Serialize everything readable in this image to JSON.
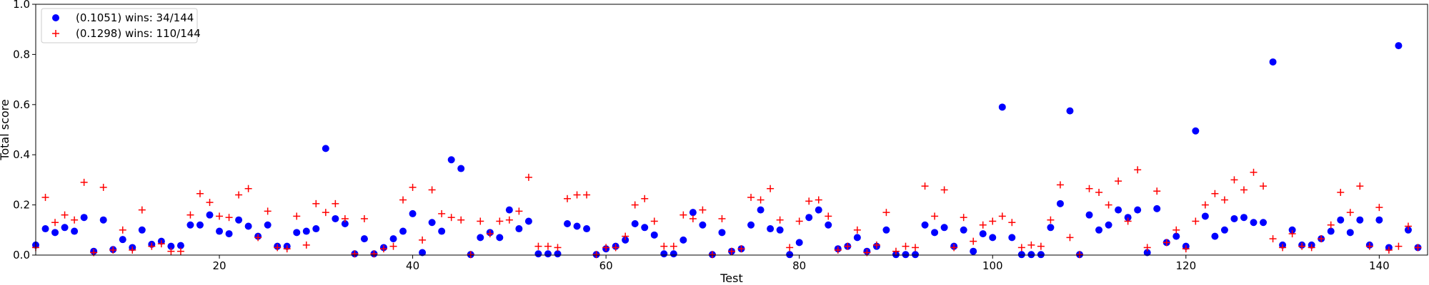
{
  "chart_data": {
    "type": "scatter",
    "xlabel": "Test",
    "ylabel": "Total score",
    "xlim": [
      1,
      145
    ],
    "ylim": [
      0.0,
      1.0
    ],
    "xticks": [
      20,
      40,
      60,
      80,
      100,
      120,
      140
    ],
    "yticks": [
      0.0,
      0.2,
      0.4,
      0.6,
      0.8,
      1.0
    ],
    "grid": false,
    "legend_position": "top-left",
    "series": [
      {
        "name": "(0.1051) wins: 34/144",
        "marker": "circle",
        "color": "#0000ff",
        "x": [
          1,
          2,
          3,
          4,
          5,
          6,
          7,
          8,
          9,
          10,
          11,
          12,
          13,
          14,
          15,
          16,
          17,
          18,
          19,
          20,
          21,
          22,
          23,
          24,
          25,
          26,
          27,
          28,
          29,
          30,
          31,
          32,
          33,
          34,
          35,
          36,
          37,
          38,
          39,
          40,
          41,
          42,
          43,
          44,
          45,
          46,
          47,
          48,
          49,
          50,
          51,
          52,
          53,
          54,
          55,
          56,
          57,
          58,
          59,
          60,
          61,
          62,
          63,
          64,
          65,
          66,
          67,
          68,
          69,
          70,
          71,
          72,
          73,
          74,
          75,
          76,
          77,
          78,
          79,
          80,
          81,
          82,
          83,
          84,
          85,
          86,
          87,
          88,
          89,
          90,
          91,
          92,
          93,
          94,
          95,
          96,
          97,
          98,
          99,
          100,
          101,
          102,
          103,
          104,
          105,
          106,
          107,
          108,
          109,
          110,
          111,
          112,
          113,
          114,
          115,
          116,
          117,
          118,
          119,
          120,
          121,
          122,
          123,
          124,
          125,
          126,
          127,
          128,
          129,
          130,
          131,
          132,
          133,
          134,
          135,
          136,
          137,
          138,
          139,
          140,
          141,
          142,
          143,
          144
        ],
        "y": [
          0.04,
          0.105,
          0.09,
          0.11,
          0.095,
          0.15,
          0.015,
          0.14,
          0.022,
          0.062,
          0.03,
          0.1,
          0.043,
          0.055,
          0.035,
          0.038,
          0.12,
          0.12,
          0.16,
          0.095,
          0.085,
          0.14,
          0.115,
          0.075,
          0.12,
          0.035,
          0.035,
          0.09,
          0.095,
          0.105,
          0.425,
          0.145,
          0.125,
          0.005,
          0.065,
          0.005,
          0.03,
          0.065,
          0.095,
          0.165,
          0.01,
          0.13,
          0.095,
          0.38,
          0.345,
          0.002,
          0.07,
          0.09,
          0.07,
          0.18,
          0.105,
          0.135,
          0.005,
          0.005,
          0.005,
          0.125,
          0.115,
          0.105,
          0.002,
          0.025,
          0.035,
          0.06,
          0.125,
          0.11,
          0.08,
          0.005,
          0.005,
          0.06,
          0.17,
          0.12,
          0.002,
          0.09,
          0.015,
          0.025,
          0.12,
          0.18,
          0.105,
          0.1,
          0.002,
          0.05,
          0.15,
          0.18,
          0.12,
          0.025,
          0.035,
          0.07,
          0.015,
          0.035,
          0.1,
          0.002,
          0.002,
          0.002,
          0.12,
          0.09,
          0.11,
          0.035,
          0.1,
          0.015,
          0.085,
          0.07,
          0.59,
          0.07,
          0.002,
          0.002,
          0.002,
          0.11,
          0.205,
          0.575,
          0.002,
          0.16,
          0.1,
          0.12,
          0.18,
          0.15,
          0.18,
          0.01,
          0.185,
          0.05,
          0.075,
          0.035,
          0.495,
          0.155,
          0.075,
          0.1,
          0.145,
          0.15,
          0.13,
          0.13,
          0.77,
          0.04,
          0.1,
          0.04,
          0.04,
          0.065,
          0.095,
          0.14,
          0.09,
          0.14,
          0.04,
          0.14,
          0.03,
          0.835,
          0.1,
          0.03
        ]
      },
      {
        "name": "(0.1298) wins: 110/144",
        "marker": "plus",
        "color": "#ff0000",
        "x": [
          1,
          2,
          3,
          4,
          5,
          6,
          7,
          8,
          9,
          10,
          11,
          12,
          13,
          14,
          15,
          16,
          17,
          18,
          19,
          20,
          21,
          22,
          23,
          24,
          25,
          26,
          27,
          28,
          29,
          30,
          31,
          32,
          33,
          34,
          35,
          36,
          37,
          38,
          39,
          40,
          41,
          42,
          43,
          44,
          45,
          46,
          47,
          48,
          49,
          50,
          51,
          52,
          53,
          54,
          55,
          56,
          57,
          58,
          59,
          60,
          61,
          62,
          63,
          64,
          65,
          66,
          67,
          68,
          69,
          70,
          71,
          72,
          73,
          74,
          75,
          76,
          77,
          78,
          79,
          80,
          81,
          82,
          83,
          84,
          85,
          86,
          87,
          88,
          89,
          90,
          91,
          92,
          93,
          94,
          95,
          96,
          97,
          98,
          99,
          100,
          101,
          102,
          103,
          104,
          105,
          106,
          107,
          108,
          109,
          110,
          111,
          112,
          113,
          114,
          115,
          116,
          117,
          118,
          119,
          120,
          121,
          122,
          123,
          124,
          125,
          126,
          127,
          128,
          129,
          130,
          131,
          132,
          133,
          134,
          135,
          136,
          137,
          138,
          139,
          140,
          141,
          142,
          143,
          144
        ],
        "y": [
          0.03,
          0.23,
          0.13,
          0.16,
          0.14,
          0.29,
          0.01,
          0.27,
          0.02,
          0.1,
          0.02,
          0.18,
          0.035,
          0.045,
          0.015,
          0.015,
          0.16,
          0.245,
          0.21,
          0.155,
          0.15,
          0.24,
          0.265,
          0.07,
          0.175,
          0.03,
          0.025,
          0.155,
          0.04,
          0.205,
          0.17,
          0.205,
          0.145,
          0.005,
          0.145,
          0.005,
          0.025,
          0.035,
          0.22,
          0.27,
          0.06,
          0.26,
          0.165,
          0.15,
          0.14,
          0.002,
          0.135,
          0.085,
          0.135,
          0.14,
          0.175,
          0.31,
          0.035,
          0.035,
          0.03,
          0.225,
          0.24,
          0.24,
          0.002,
          0.03,
          0.03,
          0.075,
          0.2,
          0.225,
          0.135,
          0.035,
          0.035,
          0.16,
          0.145,
          0.18,
          0.002,
          0.145,
          0.015,
          0.025,
          0.23,
          0.22,
          0.265,
          0.14,
          0.03,
          0.135,
          0.215,
          0.22,
          0.155,
          0.02,
          0.035,
          0.1,
          0.01,
          0.04,
          0.17,
          0.015,
          0.035,
          0.03,
          0.275,
          0.155,
          0.26,
          0.03,
          0.15,
          0.055,
          0.12,
          0.135,
          0.155,
          0.13,
          0.03,
          0.04,
          0.035,
          0.14,
          0.28,
          0.07,
          0.002,
          0.265,
          0.25,
          0.2,
          0.295,
          0.135,
          0.34,
          0.03,
          0.255,
          0.05,
          0.1,
          0.025,
          0.135,
          0.2,
          0.245,
          0.22,
          0.3,
          0.26,
          0.33,
          0.275,
          0.065,
          0.03,
          0.085,
          0.035,
          0.03,
          0.065,
          0.12,
          0.25,
          0.17,
          0.275,
          0.035,
          0.19,
          0.02,
          0.035,
          0.115,
          0.03
        ]
      }
    ]
  }
}
